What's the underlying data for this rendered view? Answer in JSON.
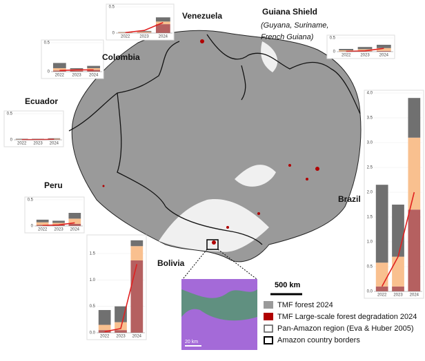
{
  "chart_data": [
    {
      "type": "bar",
      "title": "Venezuela",
      "categories": [
        "2022",
        "2023",
        "2024"
      ],
      "ylim": [
        0,
        0.5
      ],
      "yticks": [
        0,
        0.5
      ],
      "grid": true,
      "series": [
        {
          "color": "#b56060",
          "values": [
            0.005,
            0.01,
            0.17
          ]
        },
        {
          "color": "#f9c08f",
          "values": [
            0.01,
            0.015,
            0.05
          ]
        },
        {
          "color": "#707070",
          "values": [
            0.005,
            0.015,
            0.08
          ]
        },
        {
          "type": "line",
          "color": "#e02020",
          "values": [
            0.01,
            0.05,
            0.2
          ]
        }
      ]
    },
    {
      "type": "bar",
      "title": "Guiana Shield",
      "subtitle": "(Guyana, Suriname, French Guiana)",
      "categories": [
        "2022",
        "2023",
        "2024"
      ],
      "ylim": [
        0,
        0.5
      ],
      "yticks": [
        0,
        0.5
      ],
      "grid": true,
      "series": [
        {
          "color": "#b56060",
          "values": [
            0.01,
            0.02,
            0.03
          ]
        },
        {
          "color": "#f9c08f",
          "values": [
            0.04,
            0.07,
            0.1
          ]
        },
        {
          "color": "#707070",
          "values": [
            0.05,
            0.08,
            0.12
          ]
        },
        {
          "type": "line",
          "color": "#e02020",
          "values": [
            0.01,
            0.03,
            0.12
          ]
        }
      ]
    },
    {
      "type": "bar",
      "title": "Colombia",
      "categories": [
        "2022",
        "2023",
        "2024"
      ],
      "ylim": [
        0,
        0.5
      ],
      "yticks": [
        0,
        0.5
      ],
      "grid": true,
      "series": [
        {
          "color": "#b56060",
          "values": [
            0.02,
            0.02,
            0.03
          ]
        },
        {
          "color": "#f9c08f",
          "values": [
            0.04,
            0.02,
            0.03
          ]
        },
        {
          "color": "#707070",
          "values": [
            0.09,
            0.02,
            0.04
          ]
        },
        {
          "type": "line",
          "color": "#e02020",
          "values": [
            0.02,
            0.03,
            0.03
          ]
        }
      ]
    },
    {
      "type": "bar",
      "title": "Ecuador",
      "categories": [
        "2022",
        "2023",
        "2024"
      ],
      "ylim": [
        0,
        0.5
      ],
      "yticks": [
        0,
        0.5
      ],
      "grid": true,
      "series": [
        {
          "color": "#b56060",
          "values": [
            0.005,
            0.005,
            0.01
          ]
        },
        {
          "color": "#f9c08f",
          "values": [
            0.005,
            0.005,
            0.01
          ]
        },
        {
          "color": "#707070",
          "values": [
            0.01,
            0.01,
            0.01
          ]
        },
        {
          "type": "line",
          "color": "#e02020",
          "values": [
            0.005,
            0.005,
            0.01
          ]
        }
      ]
    },
    {
      "type": "bar",
      "title": "Peru",
      "categories": [
        "2022",
        "2023",
        "2024"
      ],
      "ylim": [
        0,
        0.5
      ],
      "yticks": [
        0,
        0.5
      ],
      "grid": true,
      "series": [
        {
          "color": "#b56060",
          "values": [
            0.02,
            0.02,
            0.04
          ]
        },
        {
          "color": "#f9c08f",
          "values": [
            0.05,
            0.04,
            0.1
          ]
        },
        {
          "color": "#707070",
          "values": [
            0.05,
            0.04,
            0.11
          ]
        },
        {
          "type": "line",
          "color": "#e02020",
          "values": [
            0.01,
            0.02,
            0.06
          ]
        }
      ]
    },
    {
      "type": "bar",
      "title": "Bolivia",
      "categories": [
        "2022",
        "2023",
        "2024"
      ],
      "ylim": [
        0,
        1.8
      ],
      "grid": true,
      "yticks": [
        {
          "value": 0,
          "label": "0.0"
        },
        0.5,
        {
          "value": 1,
          "label": "1.0"
        },
        1.5
      ],
      "series": [
        {
          "color": "#b56060",
          "values": [
            0.05,
            0.05,
            1.37
          ]
        },
        {
          "color": "#f9c08f",
          "values": [
            0.1,
            0.15,
            0.27
          ]
        },
        {
          "color": "#707070",
          "values": [
            0.28,
            0.3,
            0.11
          ]
        },
        {
          "type": "line",
          "color": "#e02020",
          "values": [
            0.02,
            0.08,
            1.3
          ]
        }
      ]
    },
    {
      "type": "bar",
      "title": "Brazil",
      "categories": [
        "2022",
        "2023",
        "2024"
      ],
      "ylim": [
        0,
        4
      ],
      "grid": true,
      "yticks": [
        {
          "value": 0,
          "label": "0.0"
        },
        0.5,
        {
          "value": 1,
          "label": "1.0"
        },
        1.5,
        {
          "value": 2,
          "label": "2.0"
        },
        2.5,
        {
          "value": 3,
          "label": "3.0"
        },
        3.5,
        {
          "value": 4,
          "label": "4.0"
        }
      ],
      "series": [
        {
          "color": "#b56060",
          "values": [
            0.1,
            0.1,
            1.65
          ]
        },
        {
          "color": "#f9c08f",
          "values": [
            0.48,
            0.6,
            1.45
          ]
        },
        {
          "color": "#707070",
          "values": [
            1.57,
            1.05,
            0.8
          ]
        },
        {
          "type": "line",
          "color": "#e02020",
          "values": [
            0.1,
            0.7,
            2.0
          ]
        }
      ]
    }
  ],
  "legend": {
    "items": [
      "TMF forest 2024",
      "TMF Large-scale forest degradation 2024",
      "Pan-Amazon region (Eva & Huber 2005)",
      "Amazon country borders"
    ]
  },
  "scalebar": {
    "map": "500 km",
    "inset": "20 km"
  }
}
